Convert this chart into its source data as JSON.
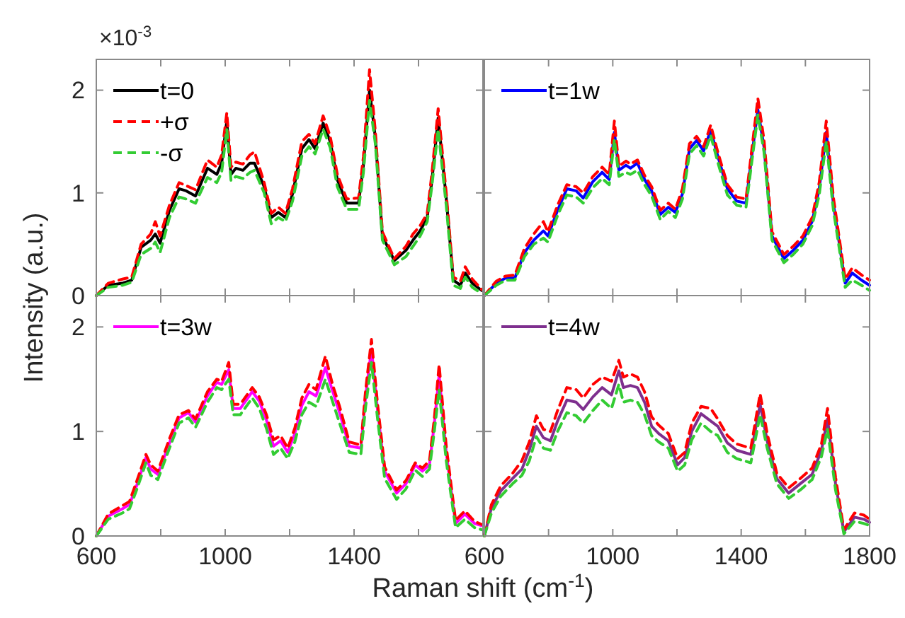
{
  "chart_data": [
    {
      "type": "line",
      "ylabel": "Intensity (a.u.)",
      "annotations": [
        "×10$^{-3}$"
      ],
      "xlim": [
        600,
        1800
      ],
      "ylim": [
        0,
        2.3
      ],
      "xticks": [
        600,
        {
          "value": 800,
          "label": null
        },
        1000,
        {
          "value": 1200,
          "label": null
        },
        1400,
        {
          "value": 1600,
          "label": null
        }
      ],
      "yticks": [
        0,
        1,
        2
      ],
      "tick_labels": "y",
      "legend": "top left",
      "grid": false,
      "x": [
        600,
        637,
        681,
        710,
        739,
        769,
        783,
        798,
        827,
        857,
        879,
        908,
        945,
        974,
        989,
        1005,
        1018,
        1033,
        1055,
        1077,
        1091,
        1121,
        1143,
        1165,
        1187,
        1209,
        1238,
        1260,
        1279,
        1304,
        1326,
        1348,
        1377,
        1414,
        1429,
        1448,
        1466,
        1488,
        1525,
        1561,
        1583,
        1605,
        1627,
        1642,
        1661,
        1686,
        1708,
        1730,
        1745,
        1767,
        1796
      ],
      "series": [
        {
          "name": "t=0",
          "color": "#000000",
          "line_style": "solid",
          "values": [
            0,
            0.1,
            0.12,
            0.15,
            0.47,
            0.54,
            0.6,
            0.51,
            0.83,
            1.04,
            1.02,
            0.97,
            1.24,
            1.18,
            1.29,
            1.7,
            1.18,
            1.24,
            1.22,
            1.29,
            1.29,
            1.06,
            0.76,
            0.81,
            0.76,
            0.99,
            1.43,
            1.52,
            1.43,
            1.68,
            1.5,
            1.13,
            0.9,
            0.9,
            1.27,
            2.0,
            1.54,
            0.58,
            0.34,
            0.44,
            0.54,
            0.63,
            0.76,
            1.13,
            1.73,
            0.95,
            0.15,
            0.1,
            0.22,
            0.12,
            0.05
          ]
        },
        {
          "name": "+σ",
          "color": "#ff0000",
          "line_style": "dashed",
          "values": [
            0,
            0.12,
            0.16,
            0.18,
            0.5,
            0.6,
            0.72,
            0.58,
            0.88,
            1.1,
            1.07,
            1.03,
            1.32,
            1.25,
            1.37,
            1.78,
            1.25,
            1.3,
            1.28,
            1.37,
            1.4,
            1.1,
            0.8,
            0.86,
            0.8,
            1.04,
            1.5,
            1.57,
            1.48,
            1.75,
            1.55,
            1.18,
            0.94,
            0.95,
            1.35,
            2.2,
            1.6,
            0.62,
            0.36,
            0.48,
            0.6,
            0.68,
            0.8,
            1.2,
            1.82,
            1.0,
            0.18,
            0.14,
            0.28,
            0.16,
            0.06
          ]
        },
        {
          "name": "-σ",
          "color": "#33cc33",
          "line_style": "dashed",
          "values": [
            0,
            0.08,
            0.1,
            0.13,
            0.4,
            0.46,
            0.52,
            0.42,
            0.76,
            0.96,
            0.94,
            0.9,
            1.15,
            1.1,
            1.2,
            1.62,
            1.12,
            1.16,
            1.14,
            1.2,
            1.22,
            1.0,
            0.7,
            0.76,
            0.72,
            0.92,
            1.36,
            1.45,
            1.38,
            1.62,
            1.44,
            1.06,
            0.84,
            0.84,
            1.2,
            1.9,
            1.48,
            0.54,
            0.3,
            0.38,
            0.48,
            0.58,
            0.72,
            1.08,
            1.62,
            0.88,
            0.1,
            0.07,
            0.18,
            0.08,
            0.02
          ]
        }
      ]
    },
    {
      "type": "line",
      "xlim": [
        600,
        1800
      ],
      "ylim": [
        0,
        2.3
      ],
      "xticks": [
        600,
        {
          "value": 800,
          "label": null
        },
        1000,
        {
          "value": 1200,
          "label": null
        },
        1400,
        {
          "value": 1600,
          "label": null
        },
        1800
      ],
      "yticks": [
        0,
        1,
        2
      ],
      "tick_labels": false,
      "legend": "top left",
      "grid": false,
      "x": [
        600,
        637,
        666,
        695,
        725,
        754,
        784,
        798,
        828,
        857,
        886,
        908,
        938,
        967,
        989,
        1005,
        1019,
        1041,
        1055,
        1077,
        1099,
        1121,
        1148,
        1173,
        1195,
        1217,
        1239,
        1261,
        1283,
        1305,
        1327,
        1357,
        1386,
        1415,
        1433,
        1452,
        1471,
        1496,
        1533,
        1562,
        1592,
        1621,
        1643,
        1665,
        1687,
        1724,
        1746,
        1775,
        1800
      ],
      "series": [
        {
          "name": "t=1w",
          "color": "#0000ff",
          "line_style": "solid",
          "values": [
            0,
            0.12,
            0.17,
            0.17,
            0.42,
            0.54,
            0.63,
            0.58,
            0.83,
            1.04,
            1.02,
            0.95,
            1.11,
            1.2,
            1.13,
            1.59,
            1.22,
            1.27,
            1.24,
            1.29,
            1.13,
            1.02,
            0.79,
            0.86,
            0.81,
            0.99,
            1.43,
            1.51,
            1.41,
            1.61,
            1.36,
            1.04,
            0.92,
            0.9,
            1.36,
            1.81,
            1.45,
            0.58,
            0.36,
            0.44,
            0.54,
            0.72,
            1.04,
            1.59,
            0.9,
            0.12,
            0.22,
            0.15,
            0.1
          ]
        },
        {
          "color": "#ff0000",
          "line_style": "dashed",
          "values": [
            0,
            0.14,
            0.19,
            0.2,
            0.46,
            0.6,
            0.72,
            0.62,
            0.88,
            1.08,
            1.06,
            1.0,
            1.16,
            1.25,
            1.18,
            1.7,
            1.26,
            1.31,
            1.28,
            1.32,
            1.17,
            1.06,
            0.83,
            0.9,
            0.84,
            1.04,
            1.48,
            1.55,
            1.45,
            1.66,
            1.4,
            1.08,
            0.96,
            0.94,
            1.42,
            1.92,
            1.52,
            0.62,
            0.4,
            0.48,
            0.58,
            0.76,
            1.1,
            1.7,
            0.96,
            0.16,
            0.27,
            0.2,
            0.15
          ]
        },
        {
          "color": "#33cc33",
          "line_style": "dashed",
          "values": [
            0,
            0.1,
            0.15,
            0.15,
            0.38,
            0.5,
            0.56,
            0.52,
            0.78,
            0.98,
            0.96,
            0.9,
            1.05,
            1.14,
            1.08,
            1.52,
            1.16,
            1.2,
            1.18,
            1.22,
            1.08,
            0.97,
            0.74,
            0.82,
            0.76,
            0.94,
            1.38,
            1.46,
            1.36,
            1.56,
            1.3,
            0.98,
            0.88,
            0.86,
            1.3,
            1.76,
            1.4,
            0.54,
            0.32,
            0.4,
            0.5,
            0.68,
            0.98,
            1.5,
            0.84,
            0.08,
            0.15,
            0.1,
            0.05
          ]
        }
      ]
    },
    {
      "type": "line",
      "xlabel": "Raman shift (cm$^{-1}$)",
      "xlim": [
        600,
        1800
      ],
      "ylim": [
        0,
        2.3
      ],
      "xticks": [
        600,
        {
          "value": 800,
          "label": null
        },
        1000,
        {
          "value": 1200,
          "label": null
        },
        1400,
        {
          "value": 1600,
          "label": null
        }
      ],
      "yticks": [
        0,
        1,
        2
      ],
      "legend": "top left",
      "grid": false,
      "x": [
        600,
        637,
        681,
        703,
        725,
        754,
        769,
        791,
        827,
        857,
        886,
        908,
        945,
        974,
        989,
        1011,
        1025,
        1047,
        1084,
        1106,
        1128,
        1150,
        1172,
        1194,
        1216,
        1238,
        1260,
        1282,
        1311,
        1334,
        1355,
        1385,
        1421,
        1436,
        1454,
        1473,
        1495,
        1532,
        1561,
        1590,
        1612,
        1634,
        1649,
        1664,
        1686,
        1715,
        1744,
        1774,
        1796
      ],
      "series": [
        {
          "name": "t=3w",
          "color": "#ff00ff",
          "line_style": "solid",
          "values": [
            0,
            0.19,
            0.26,
            0.3,
            0.48,
            0.75,
            0.64,
            0.59,
            0.89,
            1.13,
            1.18,
            1.09,
            1.34,
            1.47,
            1.45,
            1.59,
            1.22,
            1.22,
            1.38,
            1.29,
            1.11,
            0.86,
            0.91,
            0.8,
            0.98,
            1.25,
            1.38,
            1.34,
            1.61,
            1.38,
            1.18,
            0.86,
            0.84,
            1.34,
            1.79,
            1.2,
            0.62,
            0.41,
            0.5,
            0.68,
            0.62,
            0.68,
            1.07,
            1.54,
            0.8,
            0.12,
            0.21,
            0.12,
            0.1
          ]
        },
        {
          "color": "#ff0000",
          "line_style": "dashed",
          "values": [
            0,
            0.21,
            0.29,
            0.33,
            0.52,
            0.78,
            0.68,
            0.62,
            0.93,
            1.16,
            1.2,
            1.12,
            1.38,
            1.5,
            1.48,
            1.66,
            1.26,
            1.26,
            1.42,
            1.33,
            1.16,
            0.92,
            0.96,
            0.84,
            1.03,
            1.32,
            1.45,
            1.4,
            1.72,
            1.44,
            1.24,
            0.9,
            0.87,
            1.4,
            1.88,
            1.26,
            0.66,
            0.44,
            0.53,
            0.7,
            0.65,
            0.72,
            1.12,
            1.64,
            0.86,
            0.15,
            0.24,
            0.14,
            0.11
          ]
        },
        {
          "color": "#33cc33",
          "line_style": "dashed",
          "values": [
            0,
            0.16,
            0.22,
            0.26,
            0.44,
            0.7,
            0.58,
            0.54,
            0.84,
            1.08,
            1.13,
            1.04,
            1.28,
            1.42,
            1.4,
            1.5,
            1.16,
            1.16,
            1.32,
            1.22,
            1.03,
            0.78,
            0.84,
            0.74,
            0.9,
            1.16,
            1.28,
            1.24,
            1.5,
            1.28,
            1.08,
            0.8,
            0.78,
            1.24,
            1.66,
            1.12,
            0.55,
            0.35,
            0.45,
            0.63,
            0.57,
            0.64,
            1.0,
            1.4,
            0.72,
            0.08,
            0.16,
            0.08,
            0.06
          ]
        }
      ]
    },
    {
      "type": "line",
      "xlim": [
        600,
        1800
      ],
      "ylim": [
        0,
        2.3
      ],
      "xticks": [
        600,
        {
          "value": 800,
          "label": null
        },
        1000,
        {
          "value": 1200,
          "label": null
        },
        1400,
        {
          "value": 1600,
          "label": null
        },
        1800
      ],
      "yticks": [
        0,
        1,
        2
      ],
      "tick_labels": "x",
      "legend": "top left",
      "grid": false,
      "x": [
        600,
        622,
        651,
        688,
        717,
        740,
        762,
        784,
        806,
        828,
        857,
        886,
        908,
        938,
        967,
        996,
        1019,
        1033,
        1055,
        1077,
        1099,
        1121,
        1143,
        1173,
        1202,
        1224,
        1246,
        1275,
        1305,
        1327,
        1357,
        1386,
        1408,
        1430,
        1459,
        1481,
        1511,
        1548,
        1584,
        1621,
        1650,
        1669,
        1694,
        1720,
        1753,
        1782,
        1800
      ],
      "series": [
        {
          "name": "t=4w",
          "color": "#7e2f8e",
          "line_style": "solid",
          "values": [
            0,
            0.27,
            0.43,
            0.55,
            0.64,
            0.82,
            1.05,
            0.94,
            0.91,
            1.1,
            1.3,
            1.28,
            1.21,
            1.33,
            1.42,
            1.35,
            1.58,
            1.42,
            1.44,
            1.42,
            1.28,
            1.05,
            0.98,
            0.91,
            0.68,
            0.75,
            1.0,
            1.17,
            1.1,
            1.05,
            0.89,
            0.82,
            0.8,
            0.78,
            1.26,
            0.91,
            0.55,
            0.41,
            0.5,
            0.59,
            0.82,
            1.12,
            0.5,
            0.04,
            0.18,
            0.16,
            0.13
          ]
        },
        {
          "color": "#ff0000",
          "line_style": "dashed",
          "values": [
            0,
            0.3,
            0.48,
            0.6,
            0.72,
            0.9,
            1.15,
            1.02,
            1.0,
            1.2,
            1.42,
            1.4,
            1.32,
            1.45,
            1.52,
            1.48,
            1.68,
            1.52,
            1.55,
            1.52,
            1.38,
            1.14,
            1.06,
            0.98,
            0.74,
            0.8,
            1.08,
            1.24,
            1.22,
            1.12,
            0.96,
            0.88,
            0.86,
            0.84,
            1.36,
            0.98,
            0.6,
            0.46,
            0.55,
            0.65,
            0.88,
            1.22,
            0.56,
            0.06,
            0.22,
            0.2,
            0.16
          ]
        },
        {
          "color": "#33cc33",
          "line_style": "dashed",
          "values": [
            0,
            0.22,
            0.38,
            0.5,
            0.58,
            0.72,
            0.95,
            0.84,
            0.82,
            1.0,
            1.18,
            1.15,
            1.08,
            1.2,
            1.3,
            1.22,
            1.45,
            1.28,
            1.3,
            1.28,
            1.16,
            0.96,
            0.9,
            0.84,
            0.62,
            0.68,
            0.92,
            1.08,
            1.0,
            0.96,
            0.8,
            0.74,
            0.72,
            0.7,
            1.16,
            0.84,
            0.5,
            0.36,
            0.44,
            0.54,
            0.76,
            1.02,
            0.44,
            0.02,
            0.14,
            0.12,
            0.1
          ]
        }
      ]
    }
  ]
}
